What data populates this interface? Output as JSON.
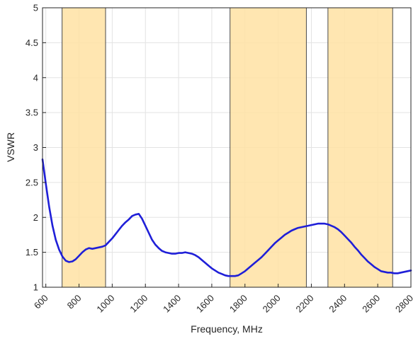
{
  "chart_data": {
    "type": "line",
    "title": "",
    "xlabel": "Frequency, MHz",
    "ylabel": "VSWR",
    "xlim": [
      580,
      2800
    ],
    "ylim": [
      1,
      5
    ],
    "xticks": [
      600,
      800,
      1000,
      1200,
      1400,
      1600,
      1800,
      2000,
      2200,
      2400,
      2600,
      2800
    ],
    "xtick_labels": [
      "600",
      "800",
      "1000",
      "1200",
      "1400",
      "1600",
      "1800",
      "2000",
      "2200",
      "2400",
      "2600",
      "2800"
    ],
    "yticks": [
      1,
      1.5,
      2,
      2.5,
      3,
      3.5,
      4,
      4.5,
      5
    ],
    "ytick_labels": [
      "1",
      "1.5",
      "2",
      "2.5",
      "3",
      "3.5",
      "4",
      "4.5",
      "5"
    ],
    "grid": true,
    "colors": {
      "line": "#1f1fd8",
      "band_fill": "#ffe2a3",
      "band_edge": "#4a4a4a",
      "grid": "#e3e3e3",
      "axis": "#262626"
    },
    "bands": [
      {
        "x_start": 698,
        "x_end": 960
      },
      {
        "x_start": 1710,
        "x_end": 2170
      },
      {
        "x_start": 2300,
        "x_end": 2690
      }
    ],
    "series": [
      {
        "x": [
          580,
          600,
          620,
          640,
          660,
          680,
          700,
          720,
          740,
          760,
          780,
          800,
          820,
          840,
          860,
          880,
          900,
          920,
          940,
          960,
          980,
          1000,
          1020,
          1040,
          1060,
          1080,
          1100,
          1120,
          1140,
          1160,
          1180,
          1200,
          1220,
          1240,
          1260,
          1280,
          1300,
          1320,
          1340,
          1360,
          1380,
          1400,
          1420,
          1440,
          1460,
          1480,
          1500,
          1520,
          1540,
          1560,
          1580,
          1600,
          1620,
          1640,
          1660,
          1680,
          1700,
          1720,
          1740,
          1760,
          1780,
          1800,
          1820,
          1840,
          1860,
          1880,
          1900,
          1920,
          1940,
          1960,
          1980,
          2000,
          2020,
          2040,
          2060,
          2080,
          2100,
          2120,
          2140,
          2160,
          2180,
          2200,
          2220,
          2240,
          2260,
          2280,
          2300,
          2320,
          2340,
          2360,
          2380,
          2400,
          2420,
          2440,
          2460,
          2480,
          2500,
          2520,
          2540,
          2560,
          2580,
          2600,
          2620,
          2640,
          2660,
          2680,
          2700,
          2720,
          2740,
          2760,
          2780,
          2800
        ],
        "y": [
          2.83,
          2.48,
          2.15,
          1.88,
          1.68,
          1.54,
          1.44,
          1.38,
          1.36,
          1.37,
          1.4,
          1.45,
          1.5,
          1.54,
          1.56,
          1.55,
          1.56,
          1.57,
          1.58,
          1.6,
          1.65,
          1.7,
          1.76,
          1.82,
          1.88,
          1.93,
          1.97,
          2.02,
          2.04,
          2.05,
          1.98,
          1.88,
          1.78,
          1.68,
          1.61,
          1.56,
          1.52,
          1.5,
          1.49,
          1.48,
          1.48,
          1.49,
          1.49,
          1.5,
          1.49,
          1.48,
          1.46,
          1.43,
          1.39,
          1.35,
          1.31,
          1.27,
          1.24,
          1.21,
          1.19,
          1.17,
          1.16,
          1.16,
          1.16,
          1.17,
          1.2,
          1.23,
          1.27,
          1.31,
          1.35,
          1.39,
          1.43,
          1.48,
          1.53,
          1.58,
          1.63,
          1.67,
          1.71,
          1.75,
          1.78,
          1.81,
          1.83,
          1.85,
          1.86,
          1.87,
          1.88,
          1.89,
          1.9,
          1.91,
          1.91,
          1.91,
          1.9,
          1.88,
          1.86,
          1.83,
          1.79,
          1.74,
          1.69,
          1.64,
          1.58,
          1.53,
          1.47,
          1.42,
          1.37,
          1.33,
          1.29,
          1.26,
          1.23,
          1.22,
          1.21,
          1.21,
          1.2,
          1.2,
          1.21,
          1.22,
          1.23,
          1.24
        ]
      }
    ]
  }
}
